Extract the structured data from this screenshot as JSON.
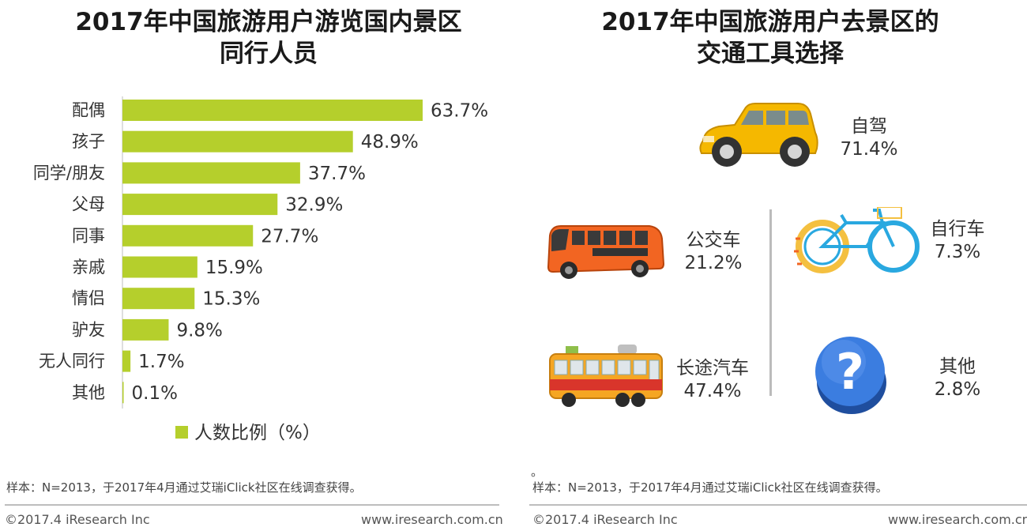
{
  "left_panel": {
    "title_line1": "2017年中国旅游用户游览国内景区",
    "title_line2": "同行人员",
    "legend": "人数比例（%）",
    "note": "样本：N=2013，于2017年4月通过艾瑞iClick社区在线调查获得。",
    "footer_left": "©2017.4 iResearch Inc",
    "footer_right": "www.iresearch.com.cn"
  },
  "right_panel": {
    "title_line1": "2017年中国旅游用户去景区的",
    "title_line2": "交通工具选择",
    "items": [
      {
        "label": "自驾",
        "value": "71.4%",
        "icon": "car-icon"
      },
      {
        "label": "公交车",
        "value": "21.2%",
        "icon": "bus-icon"
      },
      {
        "label": "自行车",
        "value": "7.3%",
        "icon": "bicycle-icon"
      },
      {
        "label": "长途汽车",
        "value": "47.4%",
        "icon": "coach-icon"
      },
      {
        "label": "其他",
        "value": "2.8%",
        "icon": "question-icon"
      }
    ],
    "dot": "。",
    "note": "样本：N=2013，于2017年4月通过艾瑞iClick社区在线调查获得。",
    "footer_left": "©2017.4 iResearch Inc",
    "footer_right": "www.iresearch.com.cn"
  },
  "colors": {
    "bar": "#b5cf2c",
    "car": "#f5b800",
    "bus": "#f26522",
    "bicycle": "#29a8e0",
    "question": "#2f6fd6"
  },
  "chart_data": {
    "type": "bar",
    "orientation": "horizontal",
    "title": "2017年中国旅游用户游览国内景区同行人员",
    "categories": [
      "配偶",
      "孩子",
      "同学/朋友",
      "父母",
      "同事",
      "亲戚",
      "情侣",
      "驴友",
      "无人同行",
      "其他"
    ],
    "values": [
      63.7,
      48.9,
      37.7,
      32.9,
      27.7,
      15.9,
      15.3,
      9.8,
      1.7,
      0.1
    ],
    "value_labels": [
      "63.7%",
      "48.9%",
      "37.7%",
      "32.9%",
      "27.7%",
      "15.9%",
      "15.3%",
      "9.8%",
      "1.7%",
      "0.1%"
    ],
    "series_name": "人数比例（%）",
    "xlim": [
      0,
      100
    ],
    "grid": false,
    "legend_position": "bottom"
  }
}
